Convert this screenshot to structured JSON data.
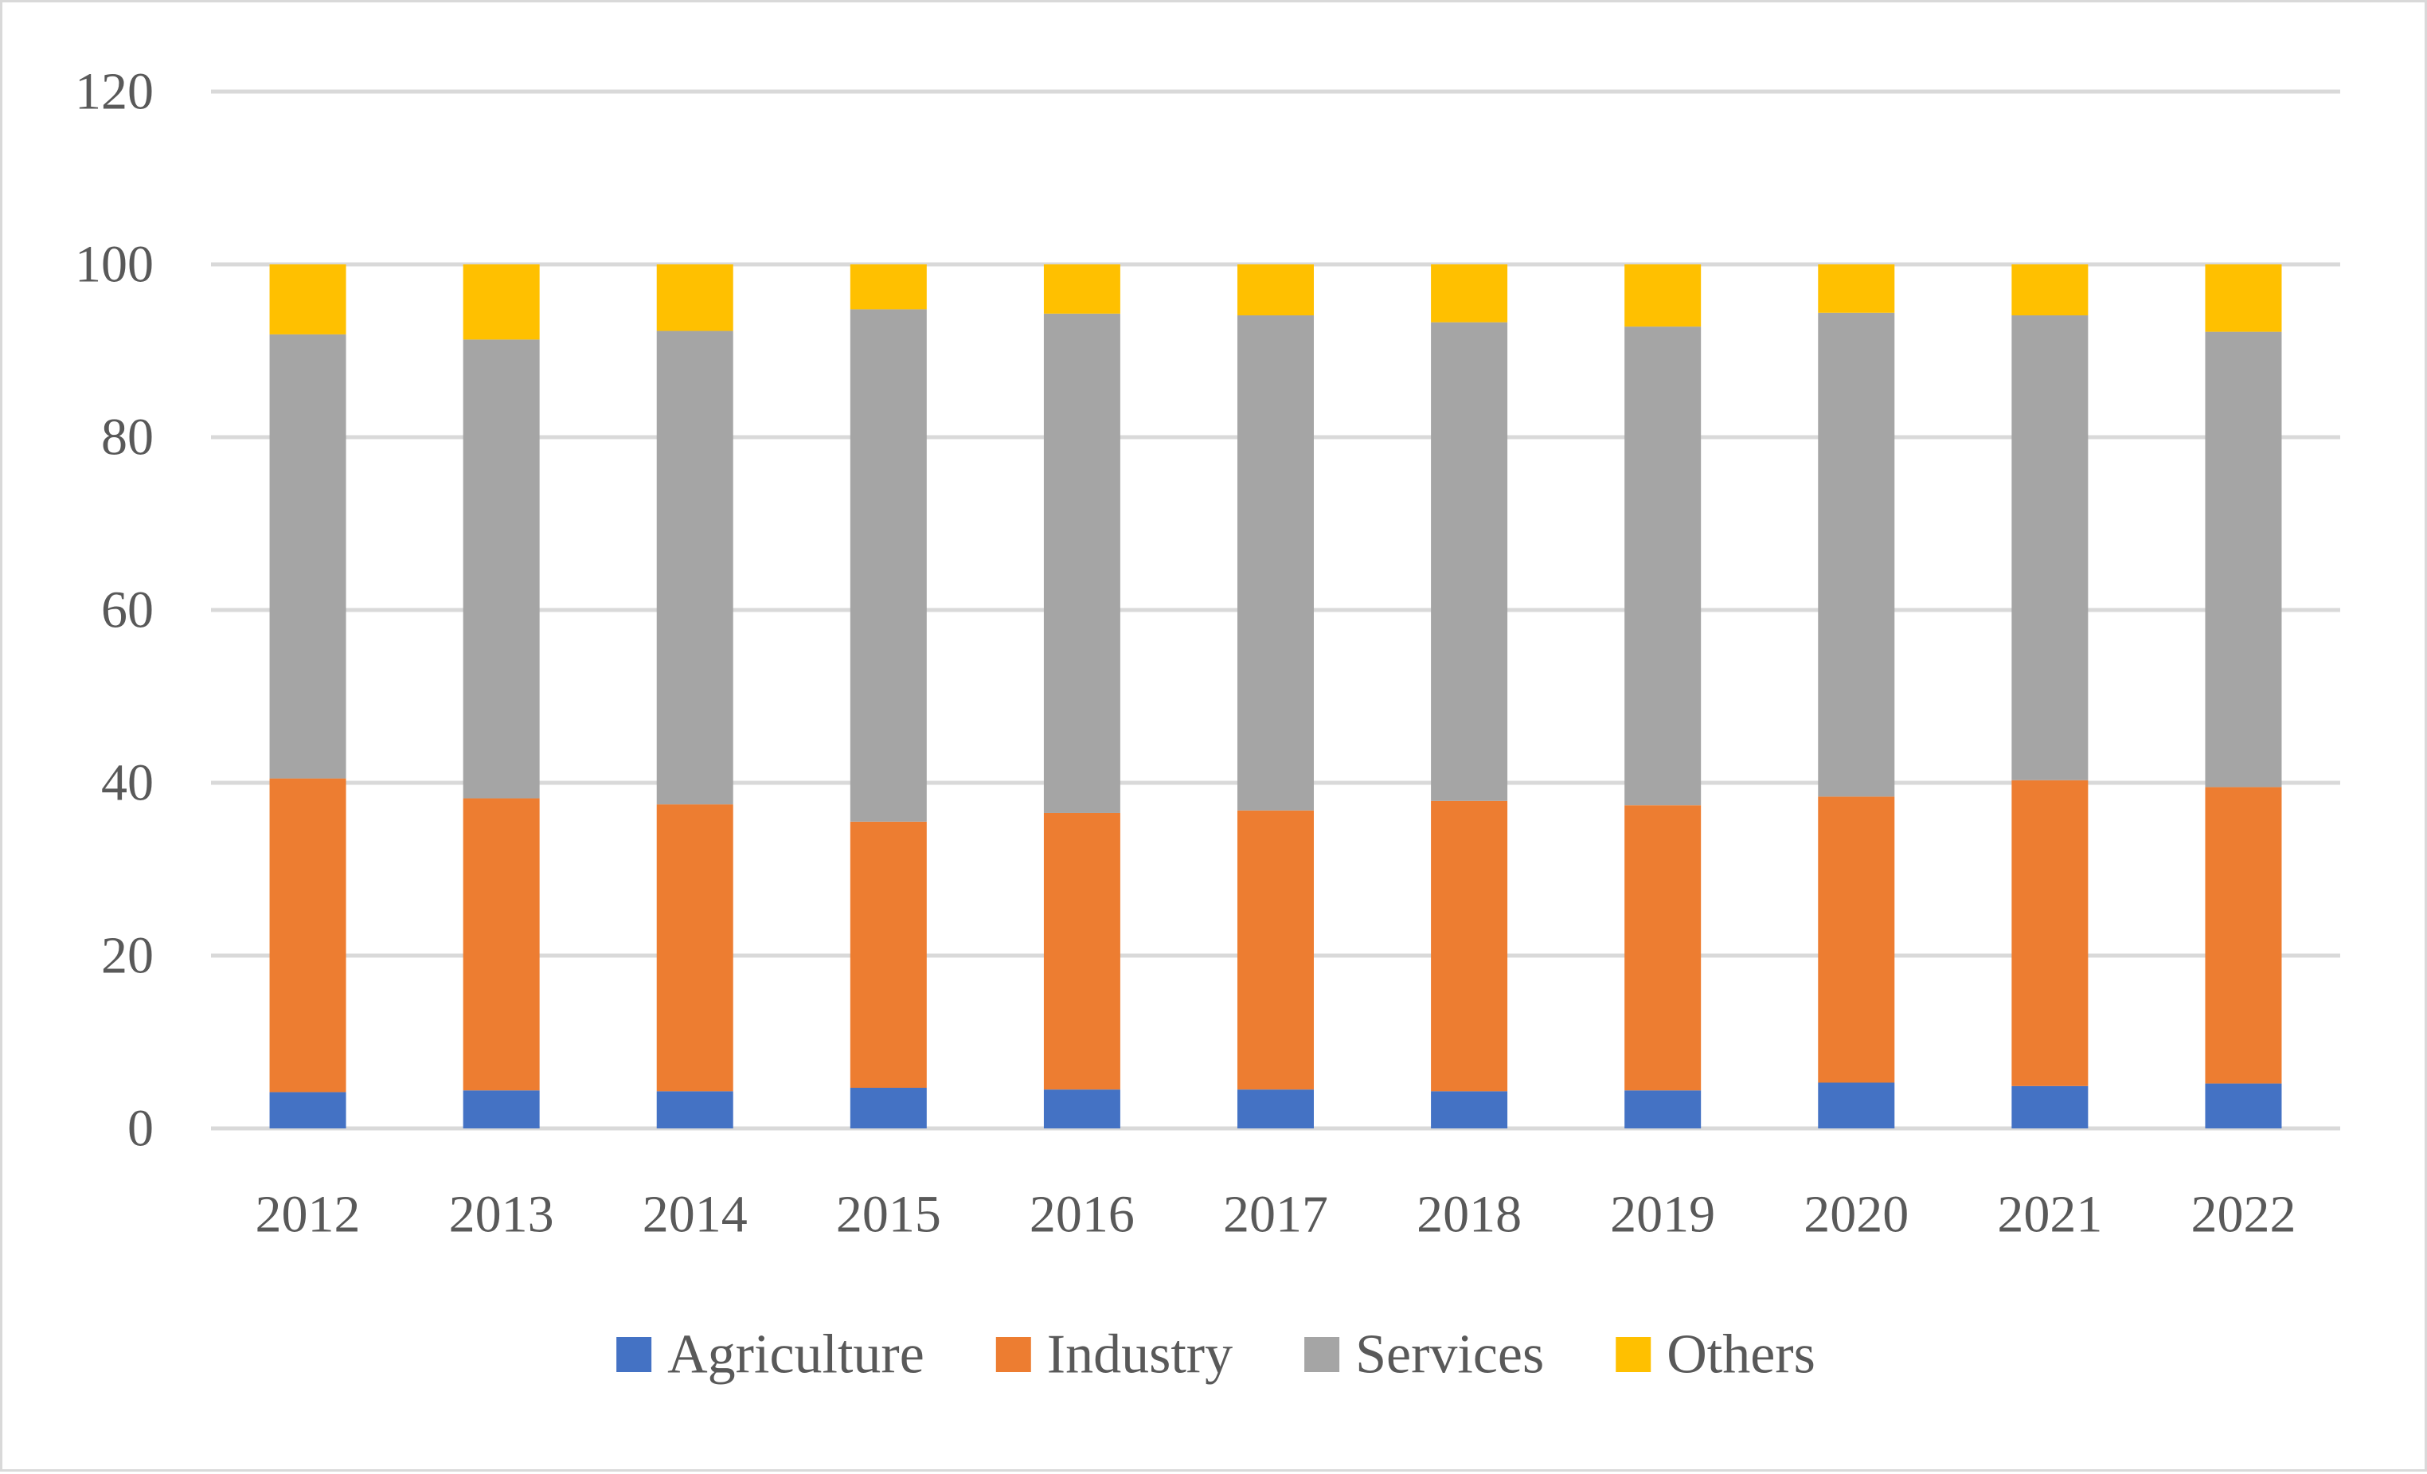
{
  "chart_data": {
    "type": "bar",
    "stacked": true,
    "title": "",
    "xlabel": "",
    "ylabel": "",
    "ylim": [
      0,
      120
    ],
    "yticks": [
      0,
      20,
      40,
      60,
      80,
      100,
      120
    ],
    "grid": true,
    "legend_position": "bottom",
    "categories": [
      "2012",
      "2013",
      "2014",
      "2015",
      "2016",
      "2017",
      "2018",
      "2019",
      "2020",
      "2021",
      "2022"
    ],
    "series": [
      {
        "name": "Agriculture",
        "color": "#4472c4",
        "values": [
          4.2,
          4.4,
          4.3,
          4.7,
          4.5,
          4.5,
          4.3,
          4.4,
          5.3,
          4.9,
          5.2
        ]
      },
      {
        "name": "Industry",
        "color": "#ed7d31",
        "values": [
          36.3,
          33.8,
          33.2,
          30.8,
          32.0,
          32.3,
          33.6,
          33.0,
          33.1,
          35.4,
          34.3
        ]
      },
      {
        "name": "Services",
        "color": "#a5a5a5",
        "values": [
          51.4,
          53.1,
          54.8,
          59.3,
          57.8,
          57.3,
          55.4,
          55.4,
          56.0,
          53.8,
          52.7
        ]
      },
      {
        "name": "Others",
        "color": "#ffc000",
        "values": [
          8.1,
          8.7,
          7.7,
          5.2,
          5.7,
          5.9,
          6.7,
          7.2,
          5.6,
          5.9,
          7.8
        ]
      }
    ]
  }
}
